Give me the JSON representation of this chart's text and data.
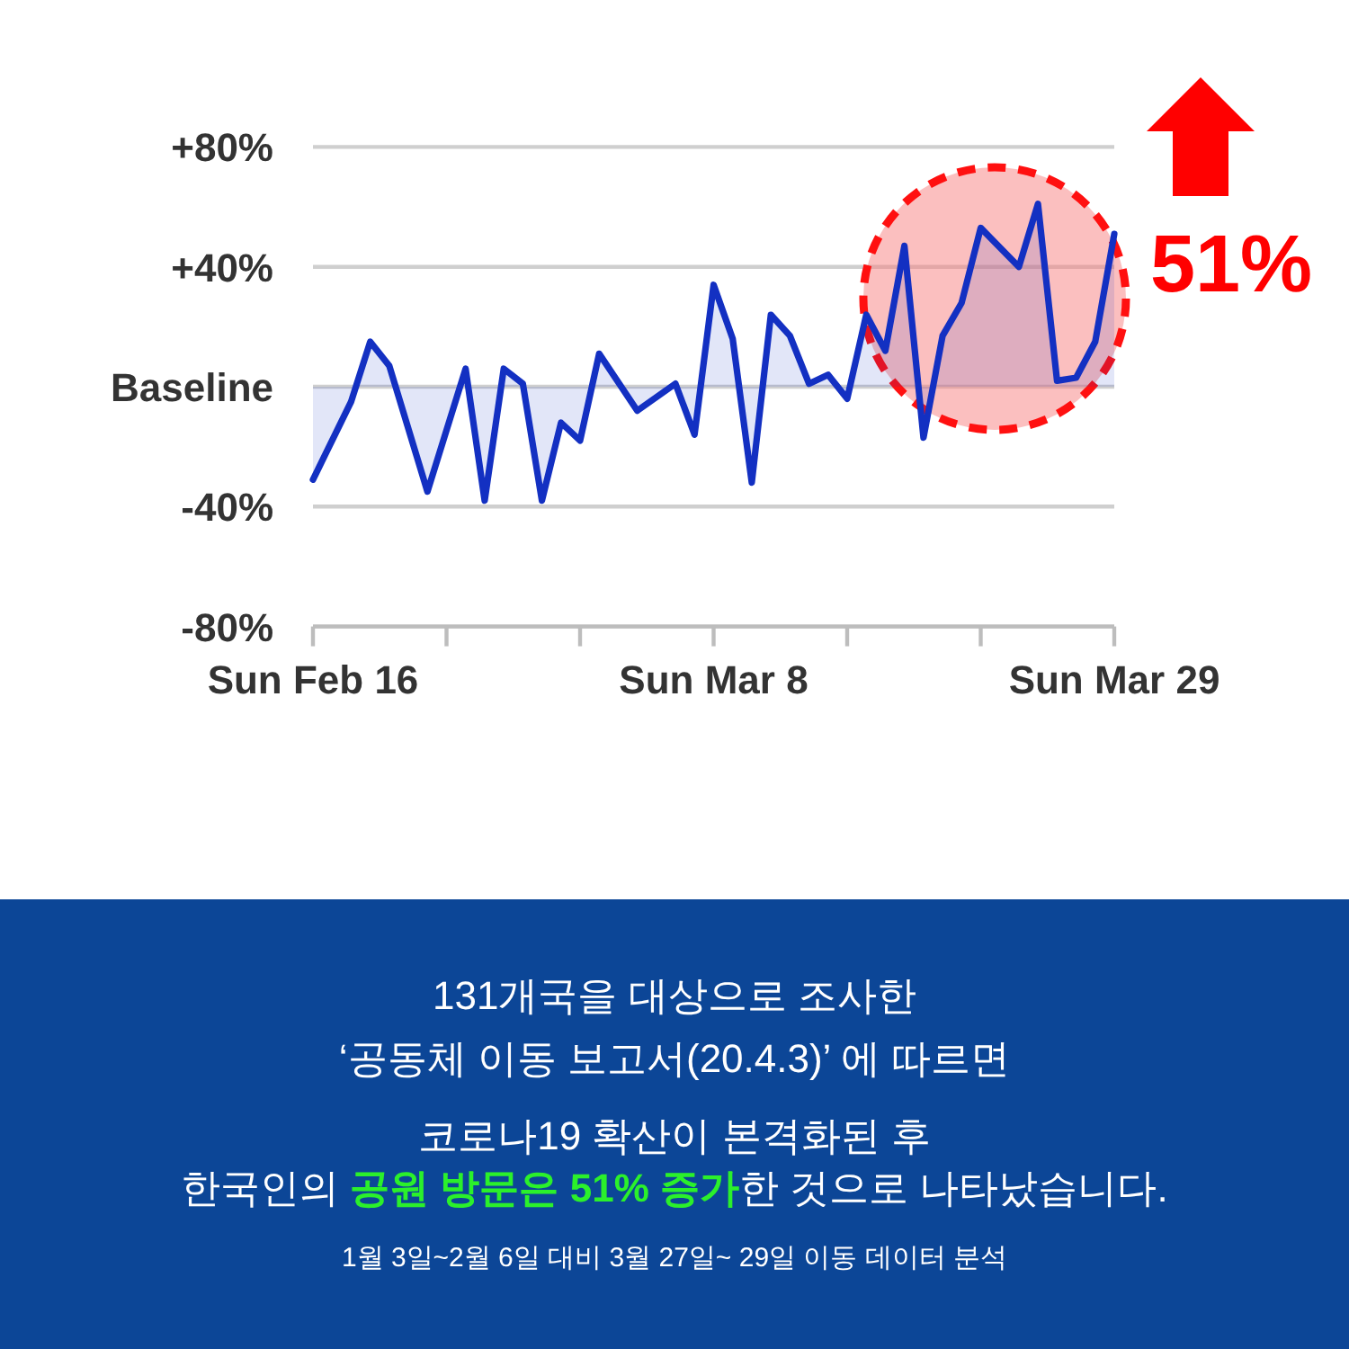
{
  "chart_data": {
    "type": "area",
    "x": [
      "--02-16",
      "--02-18",
      "--02-19",
      "--02-20",
      "--02-22",
      "--02-24",
      "--02-25",
      "--02-26",
      "--02-27",
      "--02-28",
      "--02-29",
      "--03-01",
      "--03-02",
      "--03-04",
      "--03-06",
      "--03-07",
      "--03-08",
      "--03-09",
      "--03-10",
      "--03-11",
      "--03-12",
      "--03-13",
      "--03-14",
      "--03-15",
      "--03-16",
      "--03-17",
      "--03-18",
      "--03-19",
      "--03-20",
      "--03-21",
      "--03-22",
      "--03-24",
      "--03-25",
      "--03-26",
      "--03-27",
      "--03-28",
      "--03-29"
    ],
    "series": [
      {
        "color": "#1330c2",
        "values": [
          -31,
          -5,
          15,
          7,
          -35,
          6,
          -38,
          6,
          1,
          -38,
          -12,
          -18,
          11,
          -8,
          1,
          -16,
          34,
          16,
          -32,
          24,
          17,
          1,
          4,
          -4,
          24,
          12,
          47,
          -17,
          17,
          28,
          53,
          40,
          61,
          2,
          3,
          15,
          51
        ]
      }
    ],
    "xlim": [
      "--02-16",
      "--03-29"
    ],
    "xticks": [
      {
        "value": "--02-16",
        "label": "Sun Feb 16"
      },
      {
        "value": "--02-23",
        "label": null
      },
      {
        "value": "--03-01",
        "label": null
      },
      {
        "value": "--03-08",
        "label": "Sun Mar 8"
      },
      {
        "value": "--03-15",
        "label": null
      },
      {
        "value": "--03-22",
        "label": null
      },
      {
        "value": "--03-29",
        "label": "Sun Mar 29"
      }
    ],
    "ylim": [
      -80,
      80
    ],
    "yticks": [
      {
        "value": -80,
        "label": "-80%"
      },
      {
        "value": -40,
        "label": "-40%"
      },
      {
        "value": 0,
        "label": "Baseline"
      },
      {
        "value": 40,
        "label": "+40%"
      },
      {
        "value": 80,
        "label": "+80%"
      }
    ],
    "grid": "y",
    "line_style": "solid",
    "annotations": [
      {
        "text": "51%",
        "x": "--03-29",
        "y": 51
      },
      "131개국을 대상으로 조사한",
      "‘공동체 이동 보고서(20.4.3)’ 에 따르면",
      "코로나19 확산이 본격화된 후",
      "한국인의",
      "공원 방문은 51% 증가",
      "한 것으로 나타났습니다.",
      "1월 3일~2월 6일 대비 3월 27일~ 29일 이동 데이터 분석"
    ]
  }
}
